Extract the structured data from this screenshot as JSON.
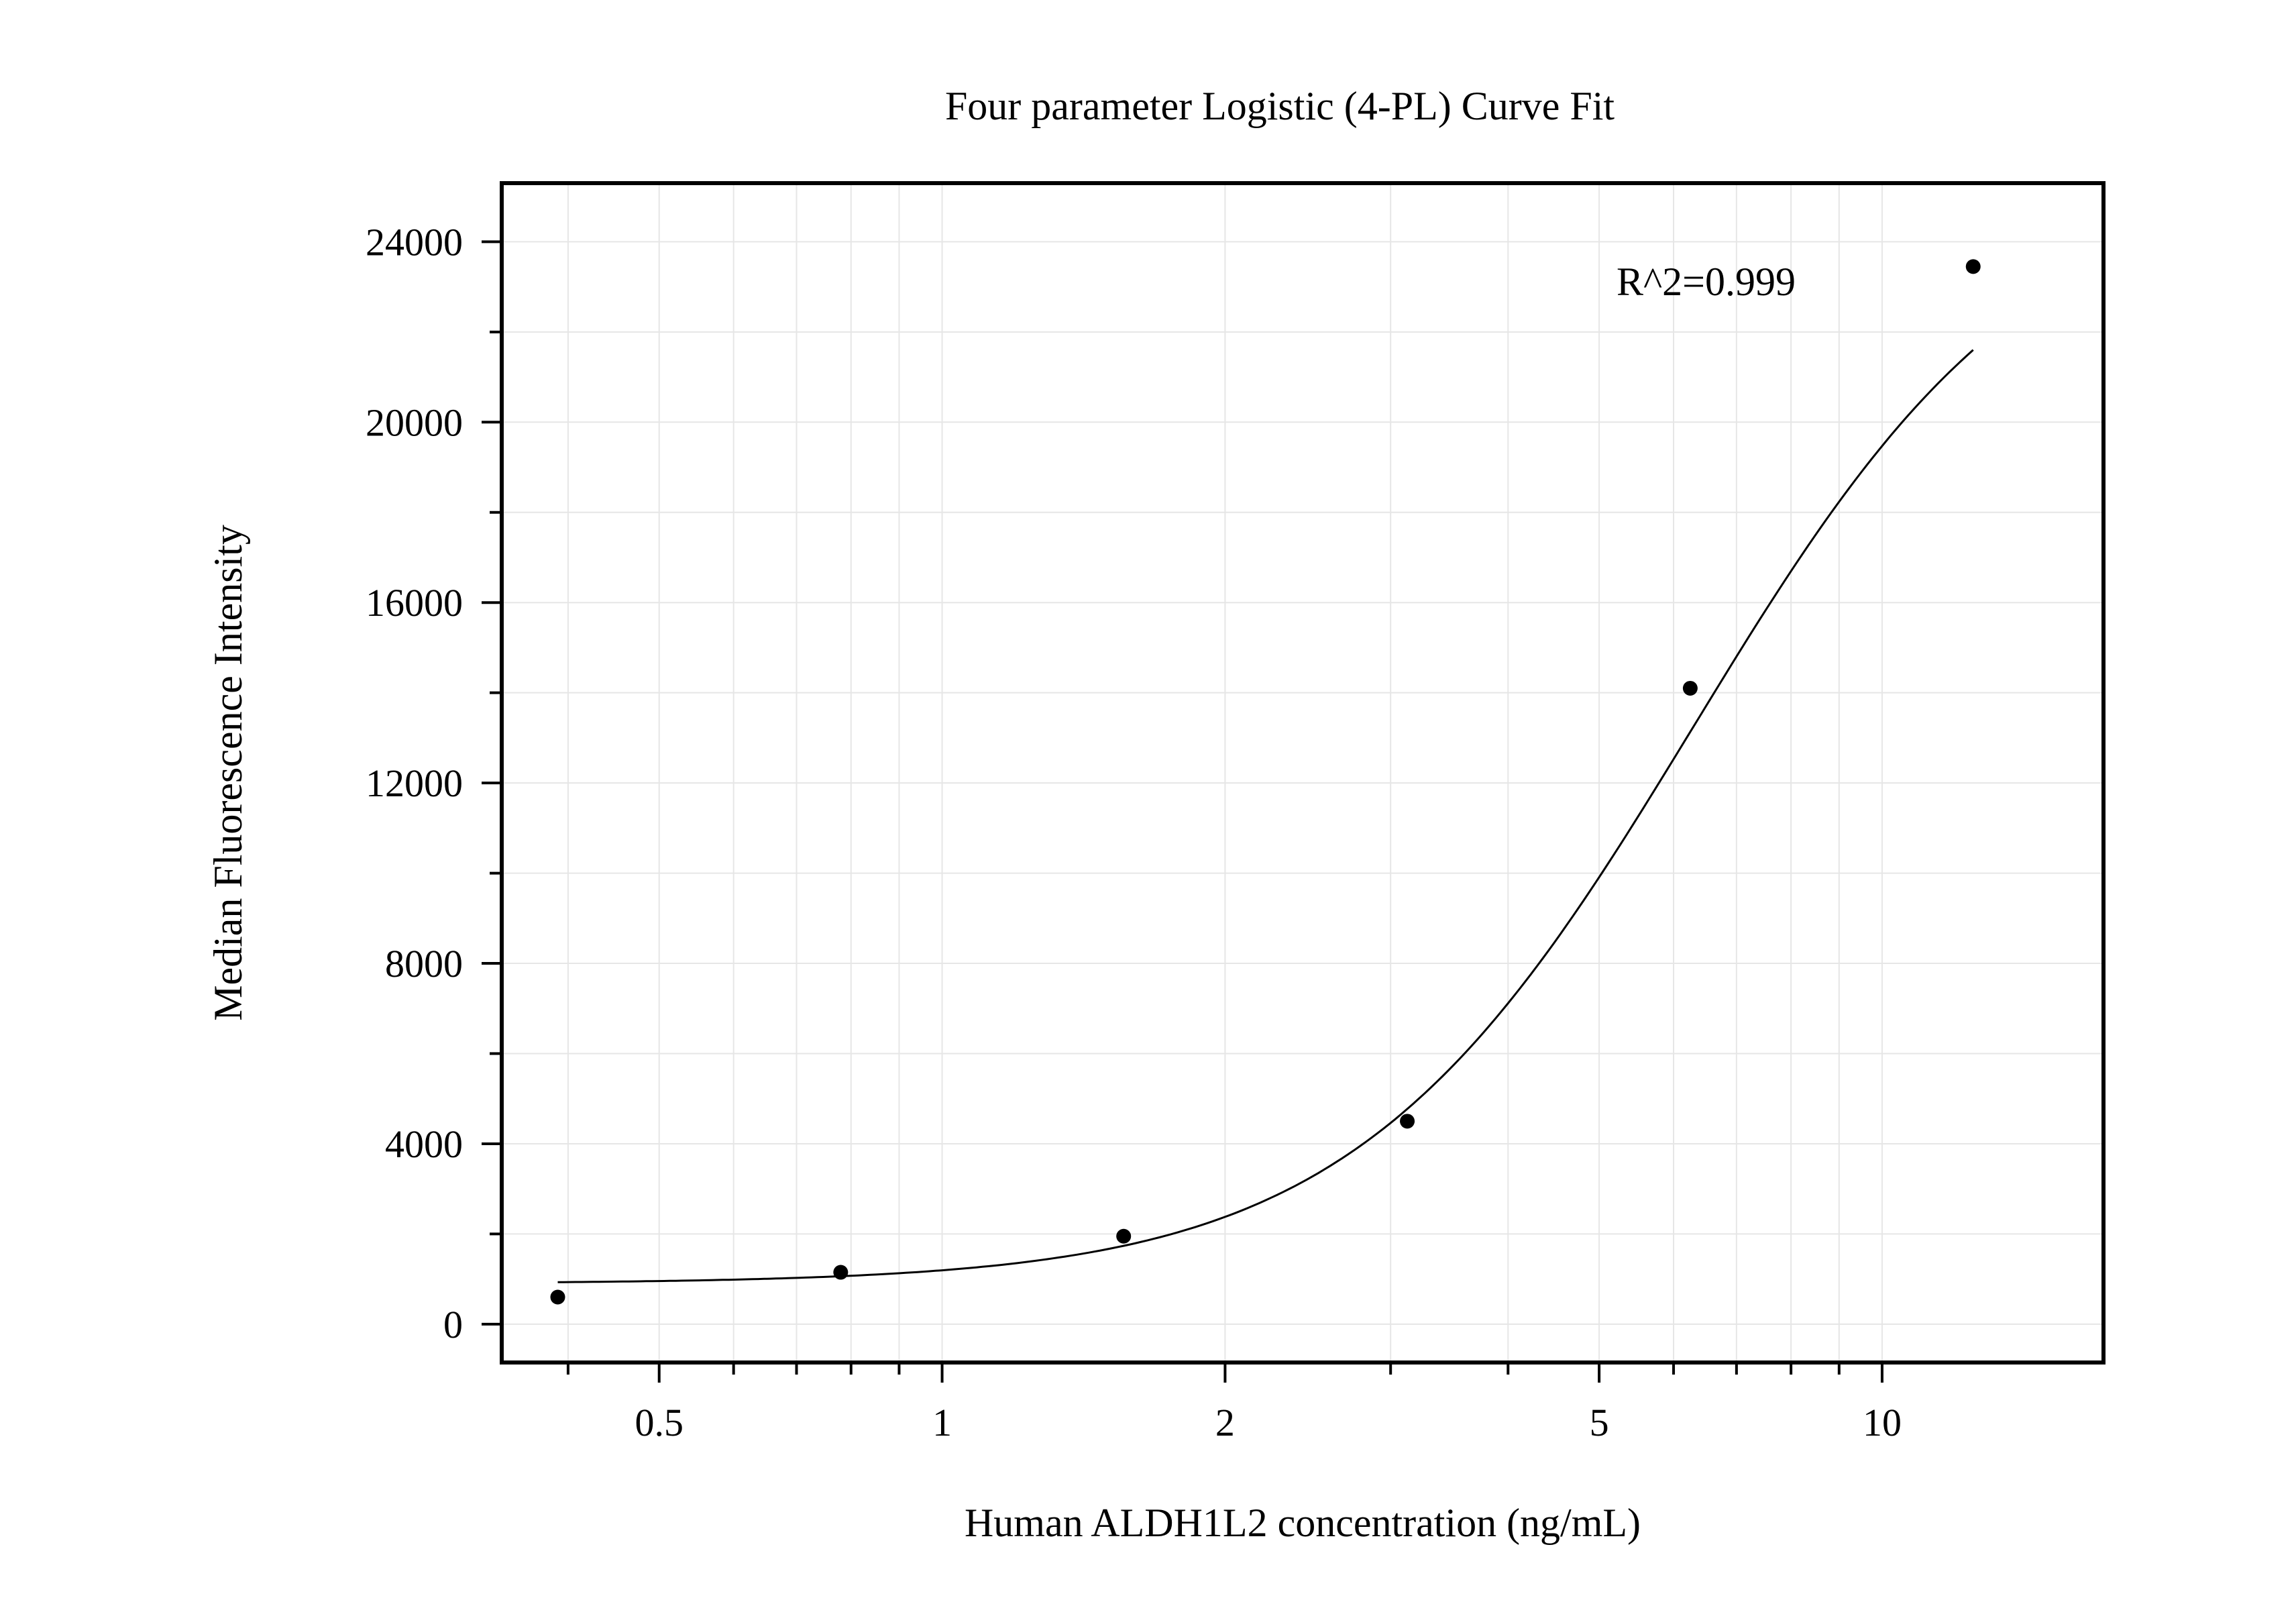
{
  "chart_data": {
    "type": "scatter",
    "title": "Four parameter Logistic (4-PL) Curve Fit",
    "xlabel": "Human ALDH1L2 concentration (ng/mL)",
    "ylabel": "Median Fluorescence Intensity",
    "xscale": "log",
    "xlim": [
      0.34,
      17.2
    ],
    "ylim": [
      -850,
      25300
    ],
    "x_ticks": [
      0.5,
      1,
      2,
      5,
      10
    ],
    "x_tick_labels": [
      "0.5",
      "1",
      "2",
      "5",
      "10"
    ],
    "x_minor_ticks": [
      0.4,
      0.6,
      0.7,
      0.8,
      0.9,
      3,
      4,
      6,
      7,
      8,
      9
    ],
    "y_ticks": [
      0,
      4000,
      8000,
      12000,
      16000,
      20000,
      24000
    ],
    "y_tick_labels": [
      "0",
      "4000",
      "8000",
      "12000",
      "16000",
      "20000",
      "24000"
    ],
    "y_minor_ticks": [
      2000,
      6000,
      10000,
      14000,
      18000,
      22000
    ],
    "grid": true,
    "annotation": "R^2=0.999",
    "points": [
      {
        "x": 0.39,
        "y": 600
      },
      {
        "x": 0.78,
        "y": 1150
      },
      {
        "x": 1.56,
        "y": 1950
      },
      {
        "x": 3.125,
        "y": 4500
      },
      {
        "x": 6.25,
        "y": 14100
      },
      {
        "x": 12.5,
        "y": 23450
      }
    ],
    "fit_curve": {
      "model": "4-PL",
      "bottom": 900,
      "top": 25600,
      "ec50": 6.3,
      "hill": 2.4,
      "x_range": [
        0.39,
        12.5
      ]
    },
    "colors": {
      "points": "#000000",
      "curve": "#000000",
      "axes": "#000000",
      "grid": "#e6e6e6"
    }
  }
}
